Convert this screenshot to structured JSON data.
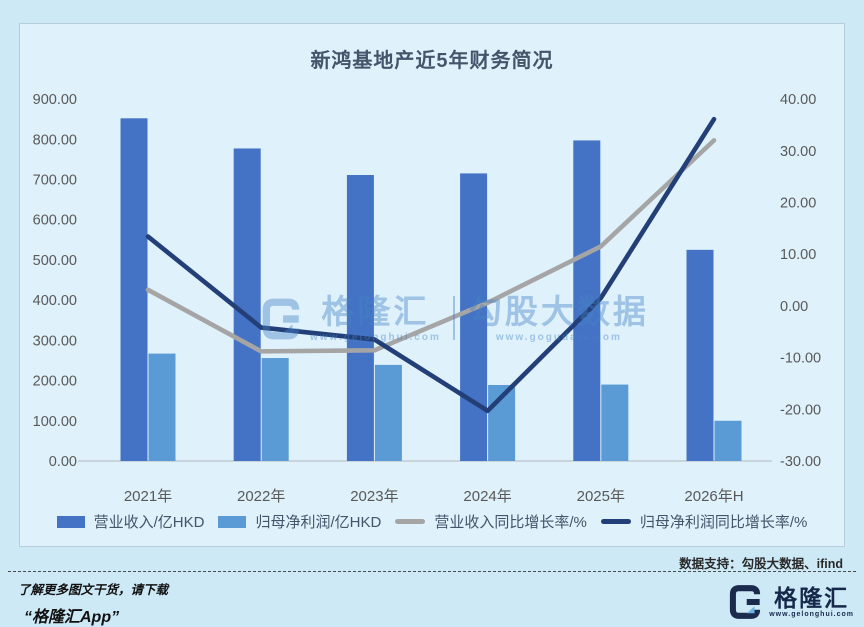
{
  "page": {
    "background": "#cde9f6",
    "panel_background": "#dff1fb"
  },
  "chart_data": {
    "type": "combo-bar-line",
    "title": "新鸿基地产近5年财务简况",
    "categories": [
      "2021年",
      "2022年",
      "2023年",
      "2024年",
      "2025年",
      "2026年H"
    ],
    "series": [
      {
        "name": "营业收入/亿HKD",
        "type": "bar",
        "axis": "left",
        "color": "#4472c4",
        "values": [
          852,
          777,
          711,
          715,
          797,
          525
        ]
      },
      {
        "name": "归母净利润/亿HKD",
        "type": "bar",
        "axis": "left",
        "color": "#5b9bd5",
        "values": [
          267,
          256,
          239,
          189,
          190,
          100
        ]
      },
      {
        "name": "营业收入同比增长率/%",
        "type": "line",
        "axis": "right",
        "color": "#a5a5a5",
        "values": [
          3.1,
          -8.8,
          -8.6,
          0.6,
          11.5,
          32.0
        ]
      },
      {
        "name": "归母净利润同比增长率/%",
        "type": "line",
        "axis": "right",
        "color": "#233f78",
        "values": [
          13.4,
          -4.2,
          -6.5,
          -20.3,
          1.5,
          36.1
        ]
      }
    ],
    "left_axis": {
      "min": 0,
      "max": 900,
      "step": 100
    },
    "right_axis": {
      "min": -30,
      "max": 40,
      "step": 10
    },
    "tick_decimals": 2,
    "gridlines": false,
    "legend_position": "bottom",
    "axis_text_color": "#595959"
  },
  "watermark": {
    "brand": "格隆汇",
    "brand_url": "www.gelonghui.com",
    "product": "勾股大数据",
    "product_url": "www.gogudata.com"
  },
  "footer": {
    "data_support": "数据支持：勾股大数据、ifind",
    "promo_line1": "了解更多图文干货，请下载",
    "promo_line2": "“格隆汇App”",
    "logo_text": "格隆汇",
    "logo_url": "www.gelonghui.com"
  }
}
